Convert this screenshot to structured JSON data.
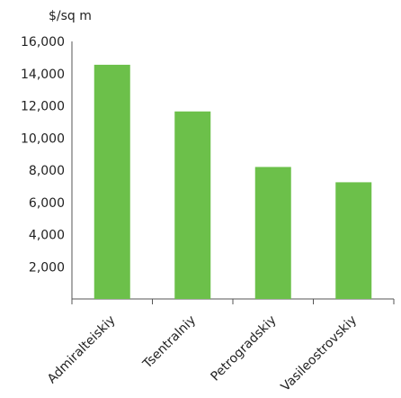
{
  "chart_data": {
    "type": "bar",
    "ylabel": "$/sq m",
    "categories": [
      "Admiralteiskiy",
      "Tsentralniy",
      "Petrogradskiy",
      "Vasileostrovskiy"
    ],
    "values": [
      14550,
      11650,
      8200,
      7250
    ],
    "ylim": [
      0,
      16000
    ],
    "yticks": [
      2000,
      4000,
      6000,
      8000,
      10000,
      12000,
      14000,
      16000
    ],
    "ytick_labels": [
      "2,000",
      "4,000",
      "6,000",
      "8,000",
      "10,000",
      "12,000",
      "14,000",
      "16,000"
    ],
    "grid": false,
    "bar_color": "#6cc04a"
  }
}
